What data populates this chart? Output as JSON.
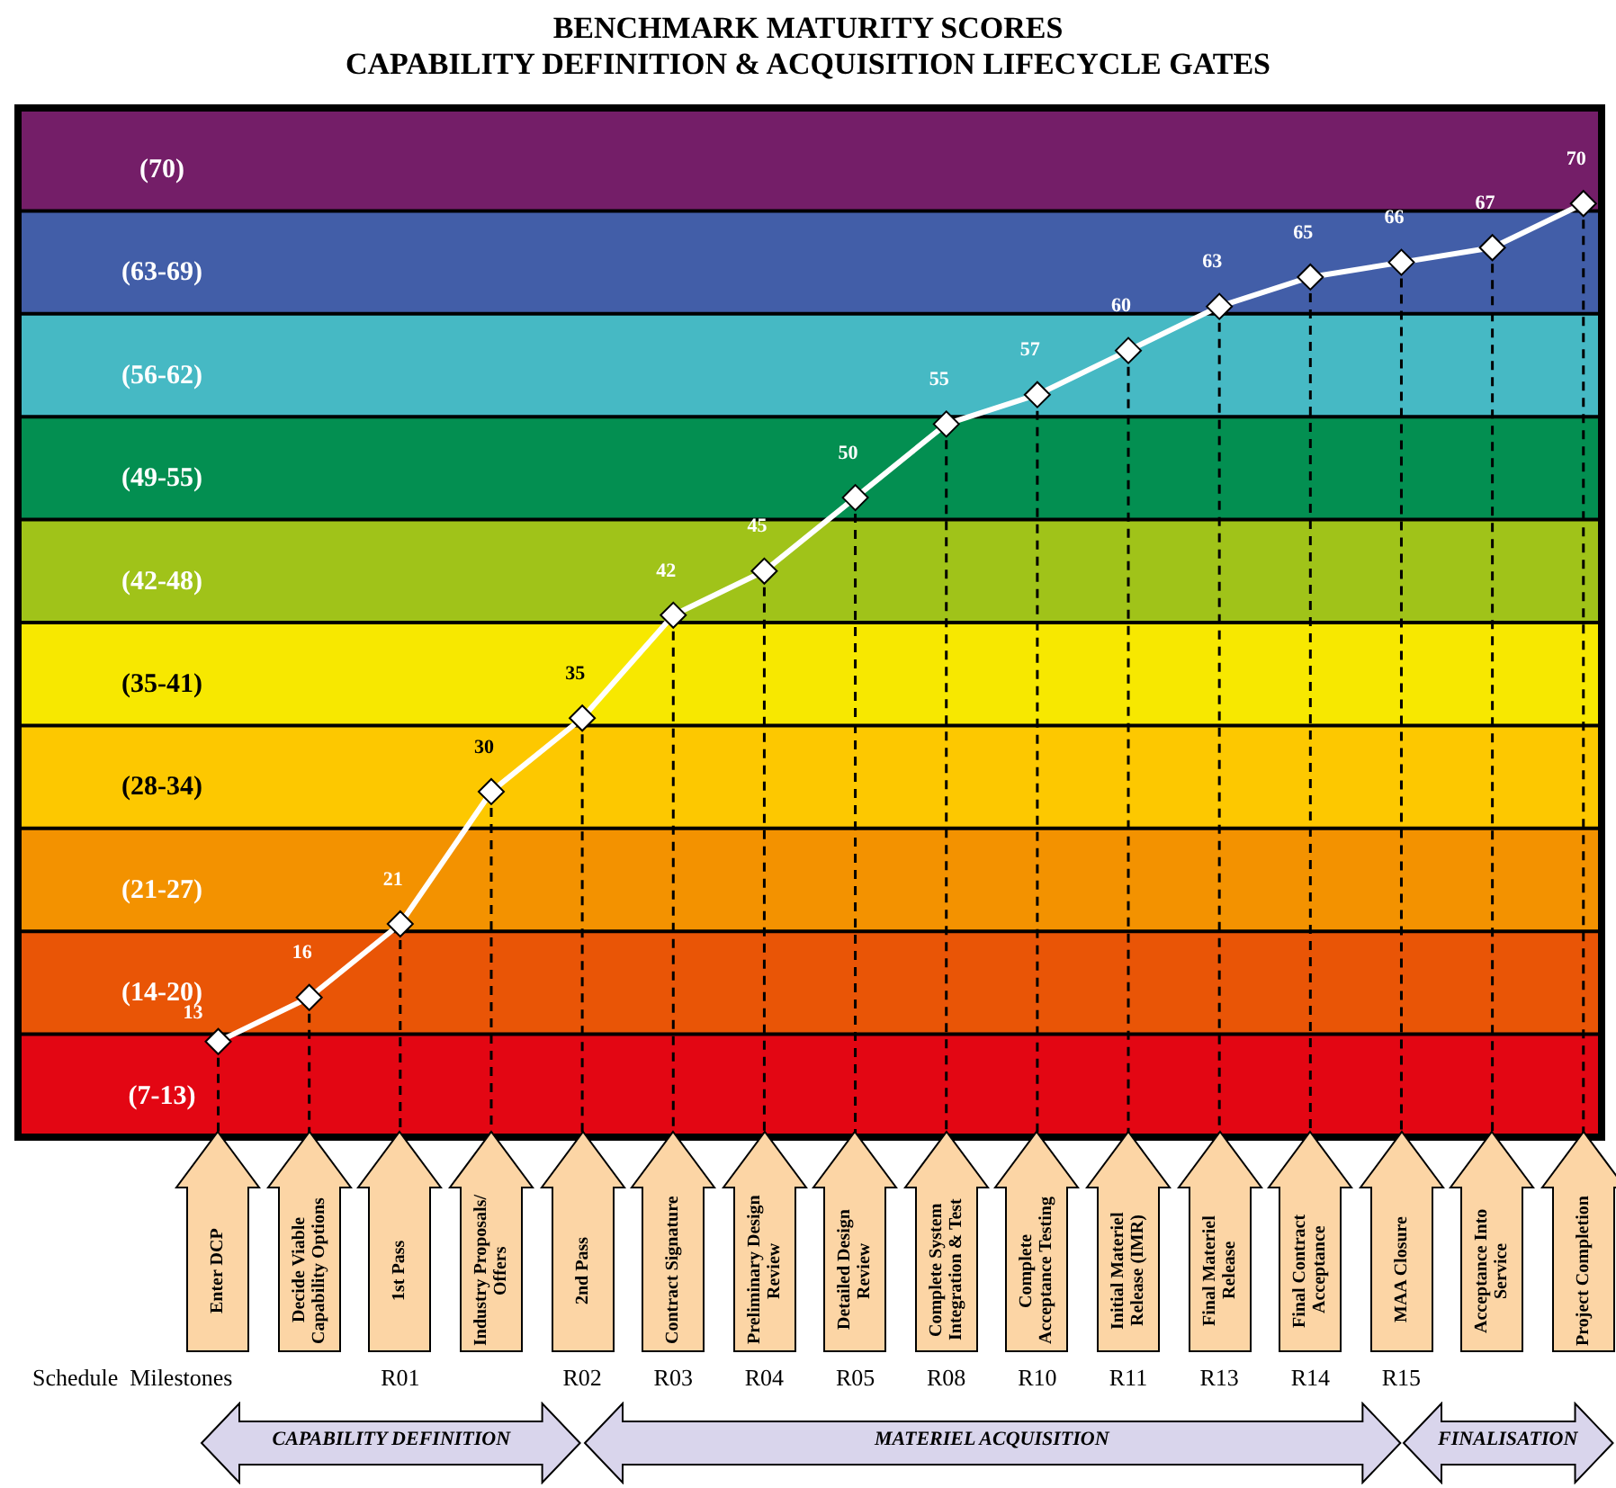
{
  "chart_data": {
    "type": "line",
    "title": "BENCHMARK MATURITY SCORES",
    "subtitle": "CAPABILITY DEFINITION & ACQUISITION LIFECYCLE GATES",
    "categories": [
      "Enter DCP",
      "Decide Viable Capability Options",
      "1st Pass",
      "Industry Proposals/ Offers",
      "2nd Pass",
      "Contract Signature",
      "Preliminary Design Review",
      "Detailed Design Review",
      "Complete System Integration & Test",
      "Complete Acceptance Testing",
      "Initial Materiel Release (IMR)",
      "Final Materiel Release",
      "Final Contract Acceptance",
      "MAA Closure",
      "Acceptance Into Service",
      "Project Completion"
    ],
    "series": [
      {
        "color": "#ffffff",
        "values": [
          13,
          16,
          21,
          30,
          35,
          42,
          45,
          50,
          55,
          57,
          60,
          63,
          65,
          66,
          67,
          70
        ]
      }
    ],
    "data_labels": true,
    "marker": "diamond",
    "line_style": "solid",
    "tick_labels": "x",
    "ylim": [
      6.5,
      76.5
    ],
    "bands": [
      {
        "axis": "y",
        "from": 6.5,
        "to": 13.5,
        "label": "(7-13)",
        "color": "#e30613"
      },
      {
        "axis": "y",
        "from": 13.5,
        "to": 20.5,
        "label": "(14-20)",
        "color": "#e95506"
      },
      {
        "axis": "y",
        "from": 20.5,
        "to": 27.5,
        "label": "(21-27)",
        "color": "#f39200"
      },
      {
        "axis": "y",
        "from": 27.5,
        "to": 34.5,
        "label": "(28-34)",
        "color": "#fdc800"
      },
      {
        "axis": "y",
        "from": 34.5,
        "to": 41.5,
        "label": "(35-41)",
        "color": "#f7e800"
      },
      {
        "axis": "y",
        "from": 41.5,
        "to": 48.5,
        "label": "(42-48)",
        "color": "#a0c319"
      },
      {
        "axis": "y",
        "from": 48.5,
        "to": 55.5,
        "label": "(49-55)",
        "color": "#038f51"
      },
      {
        "axis": "y",
        "from": 55.5,
        "to": 62.5,
        "label": "(56-62)",
        "color": "#46b9c4"
      },
      {
        "axis": "y",
        "from": 62.5,
        "to": 69.5,
        "label": "(63-69)",
        "color": "#425ea8"
      },
      {
        "axis": "y",
        "from": 69.5,
        "to": 76.5,
        "label": "(70)",
        "color": "#741e68"
      }
    ],
    "ref_lines": [
      {
        "axis": "x",
        "value": "Enter DCP",
        "line_style": "dashed",
        "color": "#000000"
      },
      {
        "axis": "x",
        "value": "Decide Viable Capability Options",
        "line_style": "dashed",
        "color": "#000000"
      },
      {
        "axis": "x",
        "value": "1st Pass",
        "line_style": "dashed",
        "color": "#000000"
      },
      {
        "axis": "x",
        "value": "Industry Proposals/ Offers",
        "line_style": "dashed",
        "color": "#000000"
      },
      {
        "axis": "x",
        "value": "2nd Pass",
        "line_style": "dashed",
        "color": "#000000"
      },
      {
        "axis": "x",
        "value": "Contract Signature",
        "line_style": "dashed",
        "color": "#000000"
      },
      {
        "axis": "x",
        "value": "Preliminary Design Review",
        "line_style": "dashed",
        "color": "#000000"
      },
      {
        "axis": "x",
        "value": "Detailed Design Review",
        "line_style": "dashed",
        "color": "#000000"
      },
      {
        "axis": "x",
        "value": "Complete System Integration & Test",
        "line_style": "dashed",
        "color": "#000000"
      },
      {
        "axis": "x",
        "value": "Complete Acceptance Testing",
        "line_style": "dashed",
        "color": "#000000"
      },
      {
        "axis": "x",
        "value": "Initial Materiel Release (IMR)",
        "line_style": "dashed",
        "color": "#000000"
      },
      {
        "axis": "x",
        "value": "Final Materiel Release",
        "line_style": "dashed",
        "color": "#000000"
      },
      {
        "axis": "x",
        "value": "Final Contract Acceptance",
        "line_style": "dashed",
        "color": "#000000"
      },
      {
        "axis": "x",
        "value": "MAA Closure",
        "line_style": "dashed",
        "color": "#000000"
      },
      {
        "axis": "x",
        "value": "Acceptance Into Service",
        "line_style": "dashed",
        "color": "#000000"
      },
      {
        "axis": "x",
        "value": "Project Completion",
        "line_style": "dashed",
        "color": "#000000"
      }
    ],
    "annotations": [
      "Schedule  Milestones",
      "R01",
      "R02",
      "R03",
      "R04",
      "R05",
      "R08",
      "R10",
      "R11",
      "R13",
      "R14",
      "R15",
      "CAPABILITY DEFINITION",
      "MATERIEL ACQUISITION",
      "FINALISATION"
    ]
  }
}
